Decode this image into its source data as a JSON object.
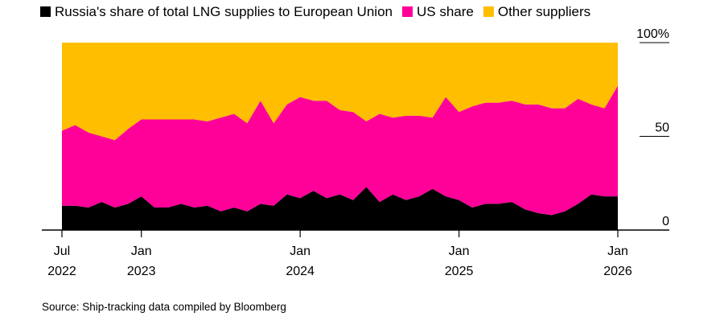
{
  "chart_data": {
    "type": "area",
    "stacked": true,
    "percent": true,
    "x": [
      "2022-07",
      "2022-08",
      "2022-09",
      "2022-10",
      "2022-11",
      "2022-12",
      "2023-01",
      "2023-02",
      "2023-03",
      "2023-04",
      "2023-05",
      "2023-06",
      "2023-07",
      "2023-08",
      "2023-09",
      "2023-10",
      "2023-11",
      "2023-12",
      "2024-01",
      "2024-02",
      "2024-03",
      "2024-04",
      "2024-05",
      "2024-06",
      "2024-07",
      "2024-08",
      "2024-09",
      "2024-10",
      "2024-11",
      "2024-12",
      "2025-01",
      "2025-02",
      "2025-03",
      "2025-04",
      "2025-05",
      "2025-06",
      "2025-07",
      "2025-08",
      "2025-09",
      "2025-10",
      "2025-11",
      "2025-12",
      "2026-01"
    ],
    "series": [
      {
        "name": "Russia's share of total LNG supplies to European Union",
        "color": "#000000",
        "values": [
          13,
          13,
          12,
          15,
          12,
          14,
          18,
          12,
          12,
          14,
          12,
          13,
          10,
          12,
          10,
          14,
          13,
          19,
          17,
          21,
          17,
          19,
          16,
          23,
          15,
          19,
          16,
          18,
          22,
          18,
          16,
          12,
          14,
          14,
          15,
          11,
          9,
          8,
          10,
          14,
          19,
          18,
          18
        ]
      },
      {
        "name": "US share",
        "color": "#ff0099",
        "values": [
          40,
          43,
          40,
          35,
          36,
          40,
          41,
          47,
          47,
          45,
          47,
          45,
          50,
          50,
          47,
          55,
          44,
          48,
          54,
          48,
          52,
          45,
          47,
          35,
          47,
          41,
          45,
          43,
          38,
          53,
          47,
          54,
          54,
          54,
          54,
          56,
          58,
          57,
          55,
          56,
          48,
          47,
          59
        ]
      },
      {
        "name": "Other suppliers",
        "color": "#ffbe00",
        "values": [
          47,
          44,
          48,
          50,
          52,
          46,
          41,
          41,
          41,
          41,
          41,
          42,
          40,
          38,
          43,
          31,
          43,
          33,
          29,
          31,
          31,
          36,
          37,
          42,
          38,
          40,
          39,
          39,
          40,
          29,
          37,
          34,
          32,
          32,
          31,
          33,
          33,
          35,
          35,
          30,
          33,
          35,
          23
        ]
      }
    ],
    "ylim": [
      0,
      100
    ],
    "y_ticks": [
      {
        "value": 100,
        "label": "100%"
      },
      {
        "value": 50,
        "label": "50"
      },
      {
        "value": 0,
        "label": "0"
      }
    ],
    "x_ticks": [
      {
        "at": "2022-07",
        "line1": "Jul",
        "line2": "2022"
      },
      {
        "at": "2023-01",
        "line1": "Jan",
        "line2": "2023"
      },
      {
        "at": "2024-01",
        "line1": "Jan",
        "line2": "2024"
      },
      {
        "at": "2025-01",
        "line1": "Jan",
        "line2": "2025"
      },
      {
        "at": "2026-01",
        "line1": "Jan",
        "line2": "2026"
      }
    ],
    "legend_position": "top-left",
    "source": "Source: Ship-tracking data compiled by Bloomberg"
  }
}
